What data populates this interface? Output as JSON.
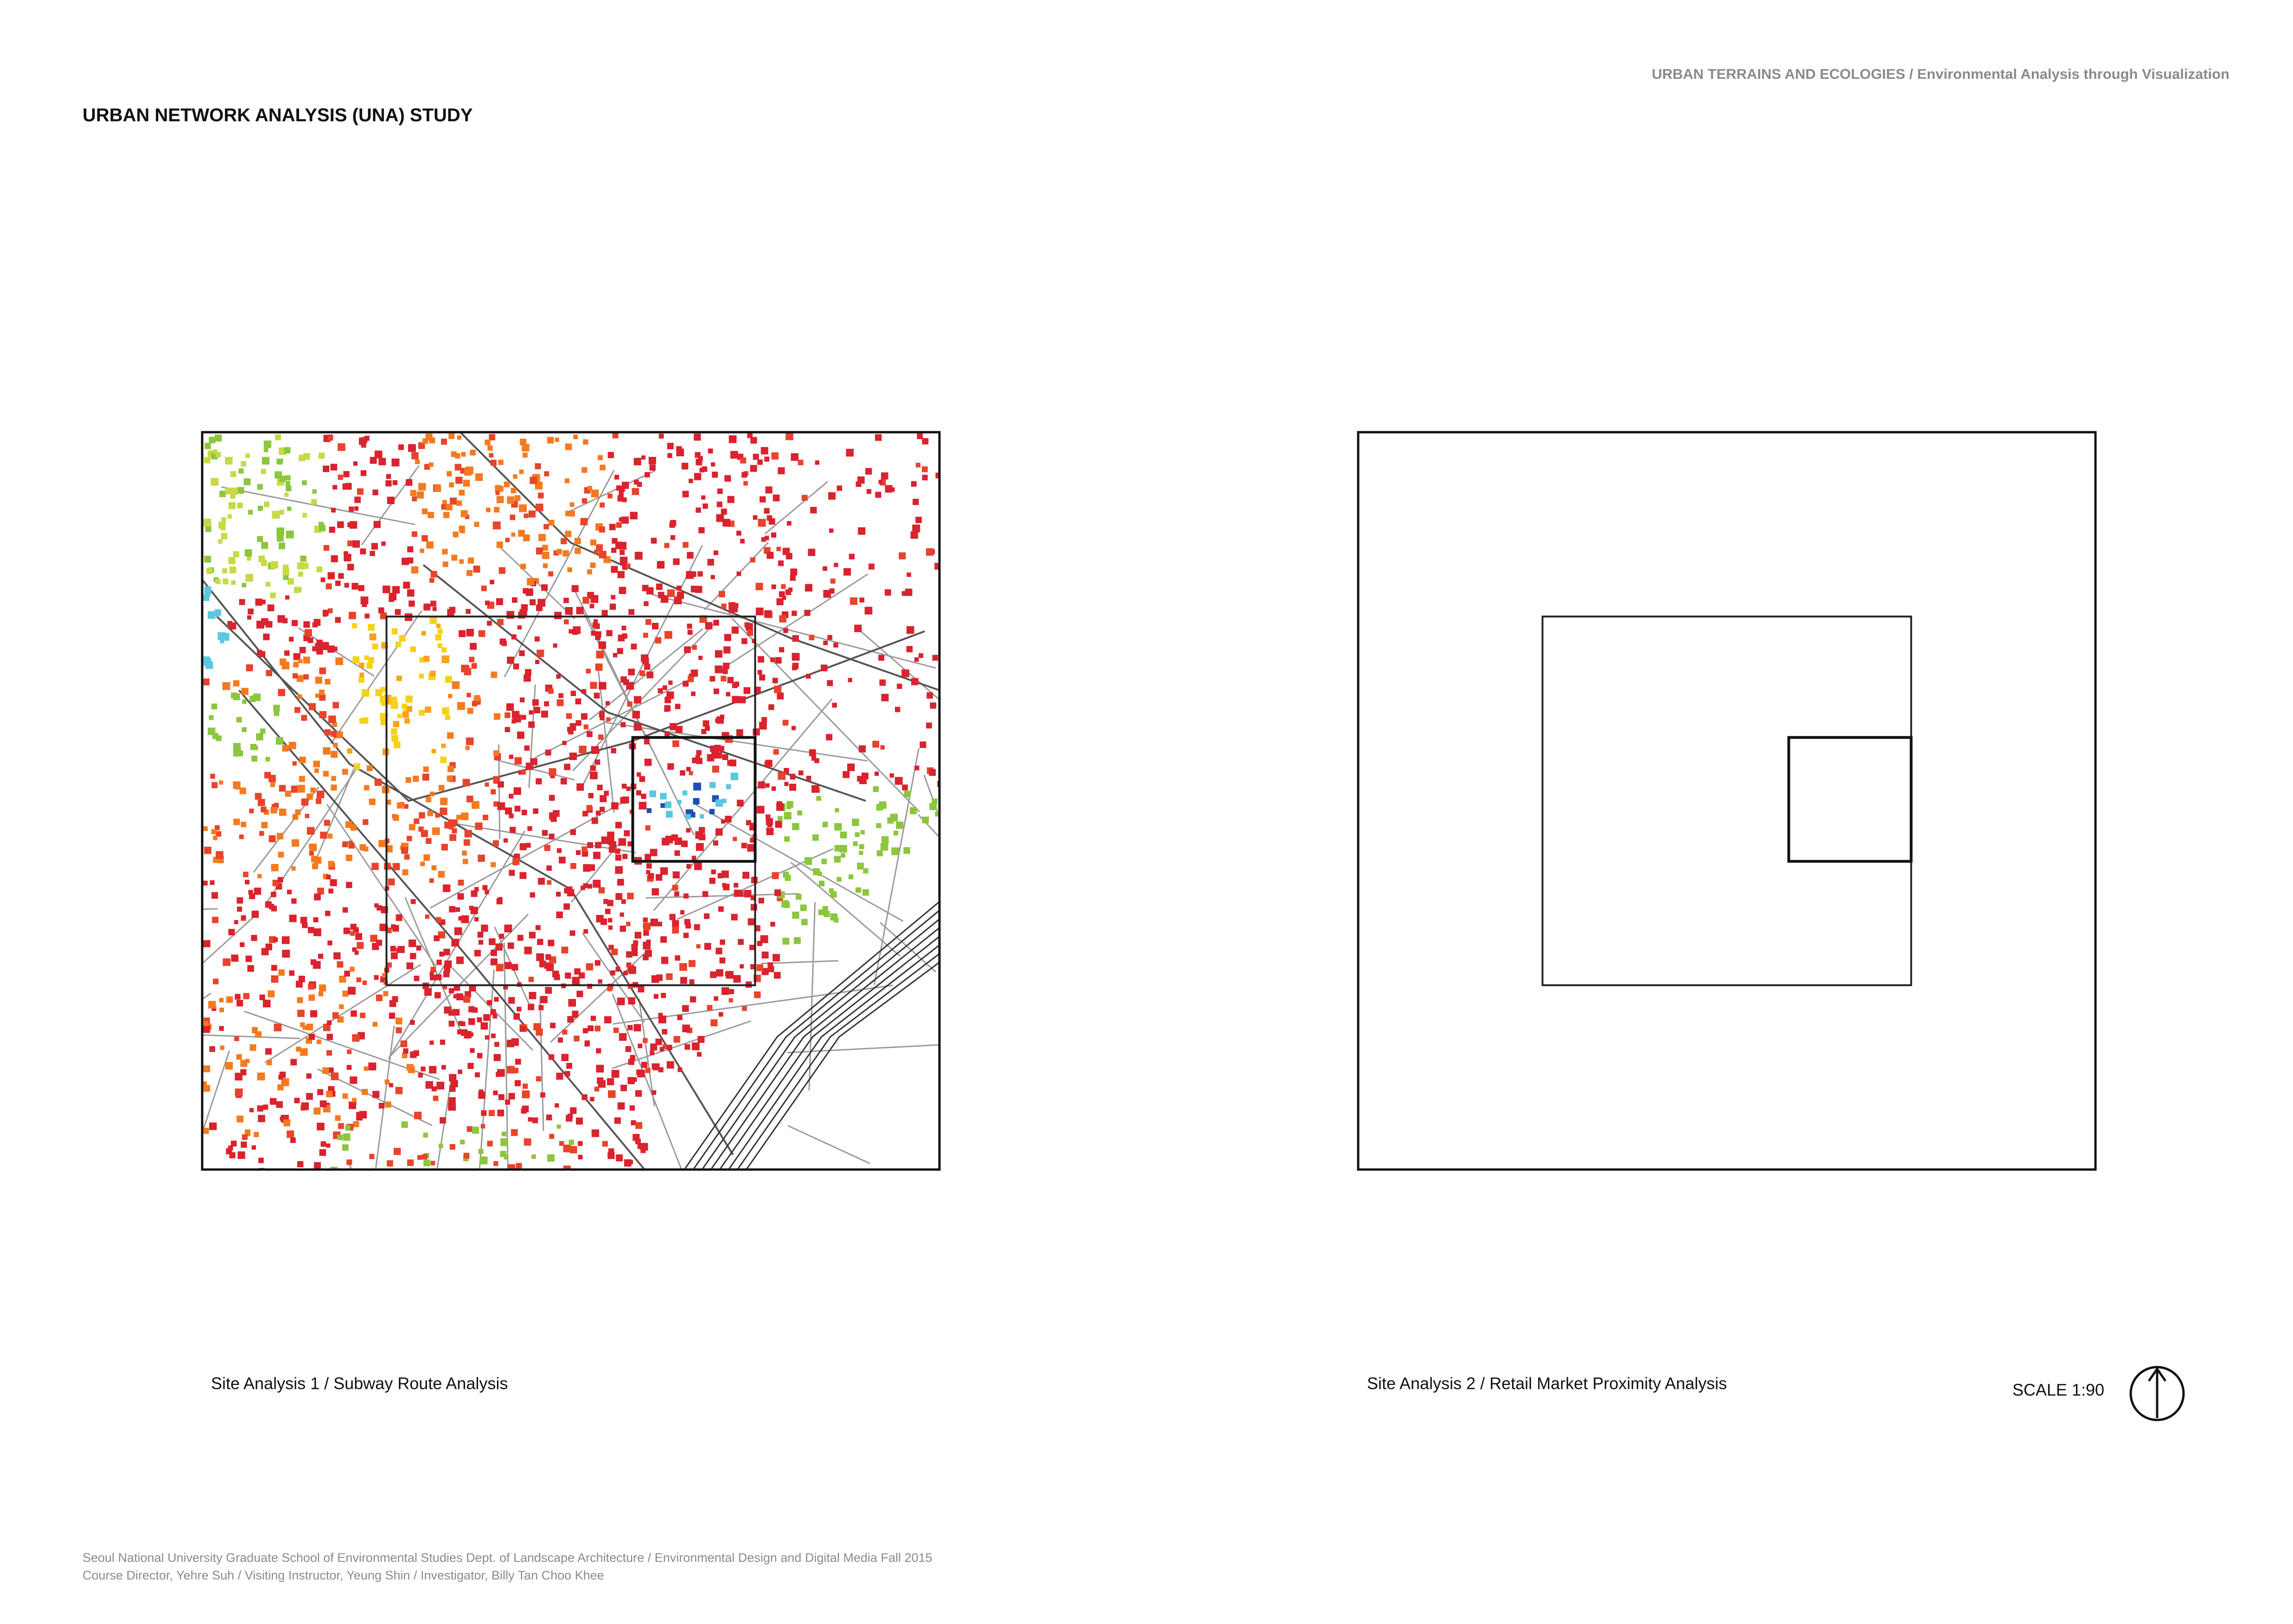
{
  "header": {
    "series": "URBAN TERRAINS AND ECOLOGIES / Environmental Analysis through Visualization",
    "title": "URBAN NETWORK ANALYSIS (UNA) STUDY"
  },
  "panels": [
    {
      "caption": "Site Analysis 1 / Subway Route Analysis"
    },
    {
      "caption": "Site Analysis 2 / Retail Market Proximity Analysis"
    }
  ],
  "scale": "SCALE 1:90",
  "footer": [
    "Seoul National University Graduate School of Environmental Studies Dept. of Landscape Architecture / Environmental Design and Digital Media Fall 2015",
    "Course Director, Yehre Suh / Visiting Instructor, Yeung Shin / Investigator, Billy Tan Choo Khee"
  ]
}
